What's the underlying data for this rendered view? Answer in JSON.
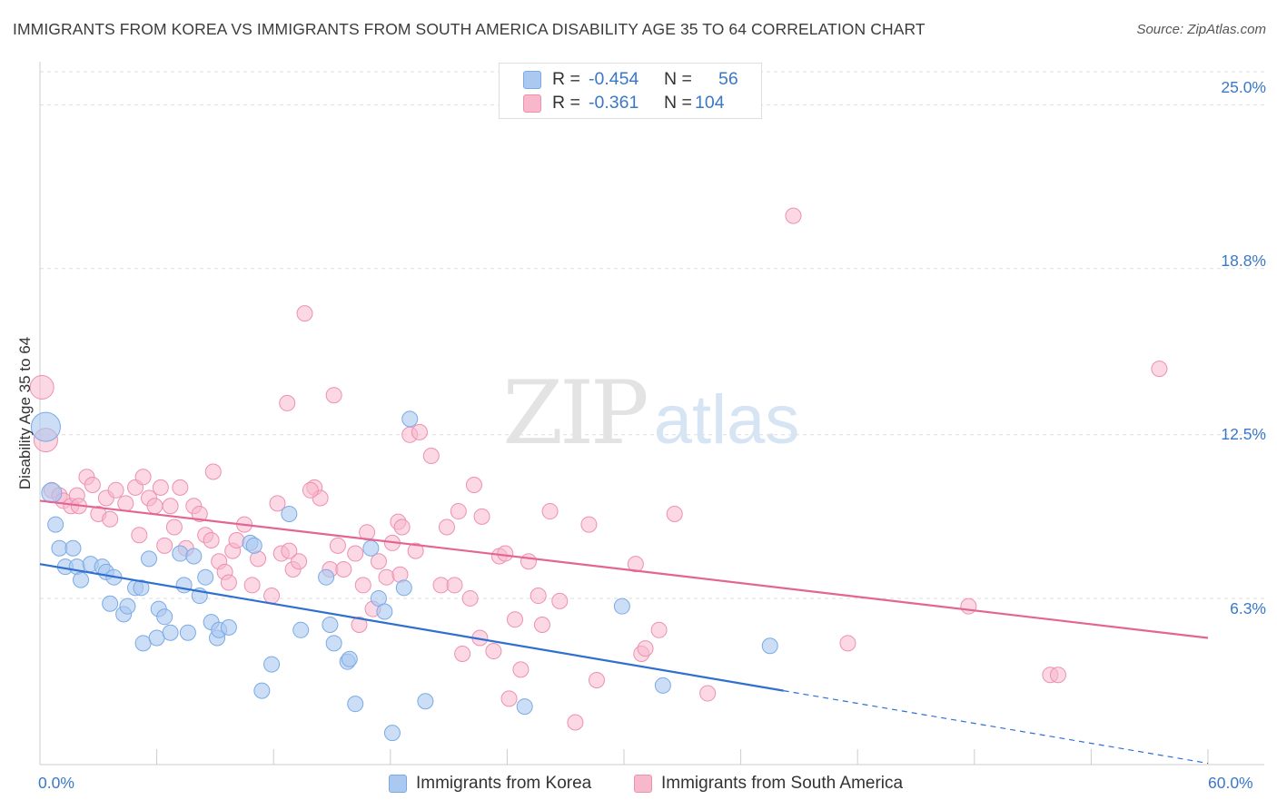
{
  "title": "IMMIGRANTS FROM KOREA VS IMMIGRANTS FROM SOUTH AMERICA DISABILITY AGE 35 TO 64 CORRELATION CHART",
  "source": "Source: ZipAtlas.com",
  "watermark": {
    "zip": "ZIP",
    "atlas": "atlas"
  },
  "legend": {
    "korea": {
      "r_label": "R =",
      "r_value": "-0.454",
      "n_label": "N =",
      "n_value": "56"
    },
    "south_america": {
      "r_label": "R =",
      "r_value": "-0.361",
      "n_label": "N =",
      "n_value": "104"
    }
  },
  "colors": {
    "korea_fill": "#aac8f0",
    "korea_stroke": "#7aaae6",
    "korea_line": "#2f6fd0",
    "sa_fill": "#f7b8cc",
    "sa_stroke": "#ee90b0",
    "sa_line": "#e26593",
    "tick_text": "#3a78c8",
    "grid": "#dddddd"
  },
  "chart_data": {
    "type": "scatter",
    "title": "IMMIGRANTS FROM KOREA VS IMMIGRANTS FROM SOUTH AMERICA DISABILITY AGE 35 TO 64 CORRELATION CHART",
    "xlabel": "",
    "ylabel": "Disability Age 35 to 64",
    "xlim": [
      0,
      60
    ],
    "ylim": [
      0,
      26.5
    ],
    "x_tick_labels": [
      "0.0%",
      "60.0%"
    ],
    "y_ticks": [
      25.0,
      18.8,
      12.5,
      6.3
    ],
    "y_tick_labels": [
      "25.0%",
      "18.8%",
      "12.5%",
      "6.3%"
    ],
    "grid": "horizontal dashed",
    "legend_position": "top-center",
    "series": [
      {
        "name": "Immigrants from Korea",
        "points": [
          [
            0.3,
            12.8
          ],
          [
            0.6,
            10.3
          ],
          [
            0.8,
            9.1
          ],
          [
            1.0,
            8.2
          ],
          [
            1.3,
            7.5
          ],
          [
            1.7,
            8.2
          ],
          [
            1.9,
            7.5
          ],
          [
            2.1,
            7.0
          ],
          [
            2.6,
            7.6
          ],
          [
            3.2,
            7.5
          ],
          [
            3.4,
            7.3
          ],
          [
            3.8,
            7.1
          ],
          [
            3.6,
            6.1
          ],
          [
            4.3,
            5.7
          ],
          [
            4.5,
            6.0
          ],
          [
            4.9,
            6.7
          ],
          [
            5.2,
            6.7
          ],
          [
            5.3,
            4.6
          ],
          [
            5.6,
            7.8
          ],
          [
            6.0,
            4.8
          ],
          [
            6.1,
            5.9
          ],
          [
            6.4,
            5.6
          ],
          [
            6.7,
            5.0
          ],
          [
            7.2,
            8.0
          ],
          [
            7.4,
            6.8
          ],
          [
            7.6,
            5.0
          ],
          [
            7.9,
            7.9
          ],
          [
            8.2,
            6.4
          ],
          [
            8.5,
            7.1
          ],
          [
            8.8,
            5.4
          ],
          [
            9.1,
            4.8
          ],
          [
            9.2,
            5.1
          ],
          [
            9.7,
            5.2
          ],
          [
            10.8,
            8.4
          ],
          [
            11.4,
            2.8
          ],
          [
            11.9,
            3.8
          ],
          [
            12.8,
            9.5
          ],
          [
            13.4,
            5.1
          ],
          [
            14.7,
            7.1
          ],
          [
            14.9,
            5.3
          ],
          [
            15.1,
            4.6
          ],
          [
            15.8,
            3.9
          ],
          [
            15.9,
            4.0
          ],
          [
            16.2,
            2.3
          ],
          [
            17.0,
            8.2
          ],
          [
            17.4,
            6.3
          ],
          [
            17.7,
            5.8
          ],
          [
            18.1,
            1.2
          ],
          [
            18.7,
            6.7
          ],
          [
            19.0,
            13.1
          ],
          [
            19.8,
            2.4
          ],
          [
            24.9,
            2.2
          ],
          [
            29.9,
            6.0
          ],
          [
            32.0,
            3.0
          ],
          [
            37.5,
            4.5
          ],
          [
            11.0,
            8.3
          ]
        ],
        "trendline": {
          "x": [
            0,
            38.2
          ],
          "y": [
            7.6,
            2.8
          ]
        },
        "trendline_dashed": {
          "x": [
            38.2,
            60
          ],
          "y": [
            2.8,
            0.05
          ]
        }
      },
      {
        "name": "Immigrants from South America",
        "points": [
          [
            0.1,
            14.3
          ],
          [
            0.3,
            12.3
          ],
          [
            0.6,
            10.4
          ],
          [
            1.0,
            10.2
          ],
          [
            1.2,
            10.0
          ],
          [
            1.6,
            9.8
          ],
          [
            1.9,
            10.2
          ],
          [
            2.0,
            9.8
          ],
          [
            2.4,
            10.9
          ],
          [
            2.7,
            10.6
          ],
          [
            3.0,
            9.5
          ],
          [
            3.4,
            10.1
          ],
          [
            3.6,
            9.3
          ],
          [
            3.9,
            10.4
          ],
          [
            4.4,
            9.9
          ],
          [
            4.9,
            10.5
          ],
          [
            5.1,
            8.7
          ],
          [
            5.3,
            10.9
          ],
          [
            5.6,
            10.1
          ],
          [
            5.9,
            9.8
          ],
          [
            6.2,
            10.5
          ],
          [
            6.4,
            8.3
          ],
          [
            6.7,
            9.8
          ],
          [
            6.9,
            9.0
          ],
          [
            7.2,
            10.5
          ],
          [
            7.5,
            8.2
          ],
          [
            7.9,
            9.8
          ],
          [
            8.2,
            9.5
          ],
          [
            8.5,
            8.7
          ],
          [
            8.8,
            8.5
          ],
          [
            8.9,
            11.1
          ],
          [
            9.2,
            7.7
          ],
          [
            9.5,
            7.3
          ],
          [
            9.7,
            6.9
          ],
          [
            9.9,
            8.1
          ],
          [
            10.1,
            8.5
          ],
          [
            10.5,
            9.1
          ],
          [
            10.9,
            6.8
          ],
          [
            11.2,
            7.8
          ],
          [
            11.9,
            6.4
          ],
          [
            12.2,
            9.9
          ],
          [
            12.4,
            8.0
          ],
          [
            12.7,
            13.7
          ],
          [
            13.0,
            7.4
          ],
          [
            13.3,
            7.7
          ],
          [
            13.6,
            17.1
          ],
          [
            14.1,
            10.5
          ],
          [
            14.4,
            10.1
          ],
          [
            14.9,
            7.4
          ],
          [
            15.1,
            14.0
          ],
          [
            15.3,
            8.3
          ],
          [
            15.6,
            7.4
          ],
          [
            16.4,
            5.3
          ],
          [
            16.6,
            6.8
          ],
          [
            16.8,
            8.8
          ],
          [
            17.1,
            5.9
          ],
          [
            17.4,
            7.7
          ],
          [
            17.8,
            7.1
          ],
          [
            18.1,
            8.4
          ],
          [
            18.4,
            9.2
          ],
          [
            18.6,
            9.0
          ],
          [
            19.0,
            12.5
          ],
          [
            19.3,
            8.1
          ],
          [
            19.5,
            12.6
          ],
          [
            20.1,
            11.7
          ],
          [
            20.6,
            6.8
          ],
          [
            20.9,
            9.0
          ],
          [
            21.3,
            6.8
          ],
          [
            21.5,
            9.6
          ],
          [
            21.7,
            4.2
          ],
          [
            22.1,
            6.3
          ],
          [
            22.3,
            10.6
          ],
          [
            22.6,
            4.8
          ],
          [
            23.3,
            4.3
          ],
          [
            23.6,
            7.9
          ],
          [
            23.9,
            8.0
          ],
          [
            24.1,
            2.5
          ],
          [
            24.4,
            5.5
          ],
          [
            24.7,
            3.6
          ],
          [
            25.1,
            7.7
          ],
          [
            25.6,
            6.4
          ],
          [
            25.8,
            5.3
          ],
          [
            26.2,
            9.6
          ],
          [
            26.7,
            6.2
          ],
          [
            27.5,
            1.6
          ],
          [
            28.2,
            9.1
          ],
          [
            28.6,
            3.2
          ],
          [
            30.6,
            7.6
          ],
          [
            30.9,
            4.2
          ],
          [
            31.1,
            4.4
          ],
          [
            31.8,
            5.1
          ],
          [
            32.6,
            9.5
          ],
          [
            34.3,
            2.7
          ],
          [
            38.7,
            20.8
          ],
          [
            41.5,
            4.6
          ],
          [
            47.7,
            6.0
          ],
          [
            51.9,
            3.4
          ],
          [
            52.3,
            3.4
          ],
          [
            57.5,
            15.0
          ],
          [
            18.5,
            7.2
          ],
          [
            16.2,
            8.0
          ],
          [
            13.9,
            10.4
          ],
          [
            12.8,
            8.1
          ],
          [
            22.7,
            9.4
          ]
        ],
        "trendline": {
          "x": [
            0,
            60
          ],
          "y": [
            10.0,
            4.8
          ]
        }
      }
    ]
  },
  "bottom_legend": {
    "korea_label": "Immigrants from Korea",
    "sa_label": "Immigrants from South America"
  }
}
